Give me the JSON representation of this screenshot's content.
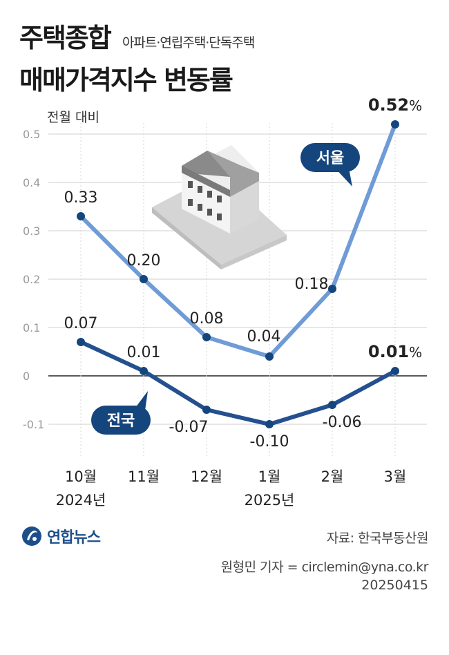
{
  "title": {
    "line1": "주택종합",
    "subtitle": "아파트·연립주택·단독주택",
    "line2": "매매가격지수 변동률"
  },
  "unit_label": "전월 대비",
  "source": "자료: 한국부동산원",
  "reporter": "원형민 기자 = circlemin@yna.co.kr",
  "date": "20250415",
  "logo_text": "연합뉴스",
  "colors": {
    "seoul": "#6f9bd6",
    "national": "#24508f",
    "grid": "#cfcfcf",
    "zero_line": "#222222",
    "bubble": "#15457d"
  },
  "chart_data": {
    "type": "line",
    "categories": [
      "10월",
      "11월",
      "12월",
      "1월",
      "2월",
      "3월"
    ],
    "category_years": [
      "2024년",
      "",
      "",
      "2025년",
      "",
      ""
    ],
    "ylim": [
      -0.1,
      0.5
    ],
    "yticks": [
      "0.5",
      "0.4",
      "0.3",
      "0.2",
      "0.1",
      "0",
      "-0.1"
    ],
    "ytick_values": [
      0.5,
      0.4,
      0.3,
      0.2,
      0.1,
      0,
      -0.1
    ],
    "grid": true,
    "ylabel": "전월 대비",
    "series": [
      {
        "name": "서울",
        "values": [
          0.33,
          0.2,
          0.08,
          0.04,
          0.18,
          0.52
        ],
        "labels": [
          "0.33",
          "0.20",
          "0.08",
          "0.04",
          "0.18",
          "0.52"
        ],
        "last_suffix": "%"
      },
      {
        "name": "전국",
        "values": [
          0.07,
          0.01,
          -0.07,
          -0.1,
          -0.06,
          0.01
        ],
        "labels": [
          "0.07",
          "0.01",
          "-0.07",
          "-0.10",
          "-0.06",
          "0.01"
        ],
        "last_suffix": "%"
      }
    ]
  }
}
